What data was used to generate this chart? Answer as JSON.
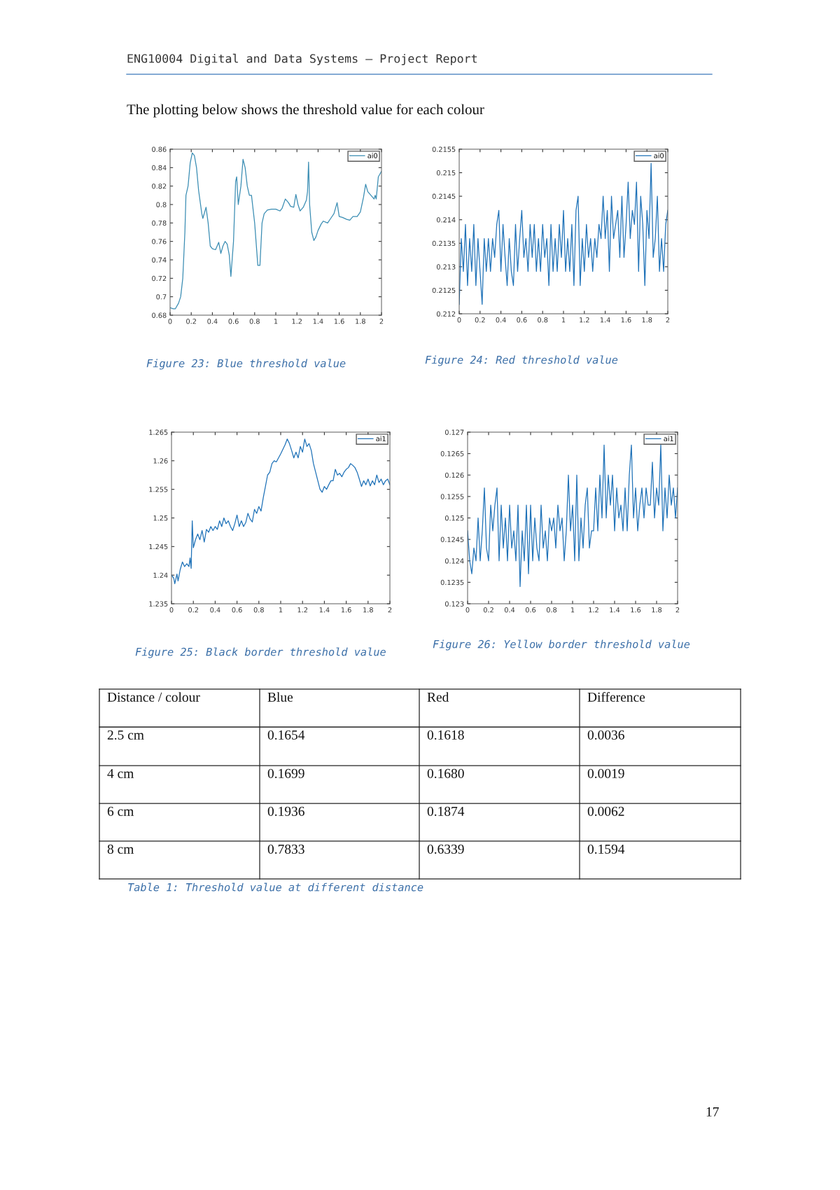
{
  "chart_data": [
    {
      "type": "line",
      "annotations": [
        "ENG10004 Digital and Data Systems – Project Report",
        "The plotting below shows the threshold value for each colour",
        "Figure 23: Blue threshold value"
      ],
      "xlim": [
        0,
        2
      ],
      "ylim": [
        0.68,
        0.86
      ],
      "xticks": [
        0,
        0.2,
        0.4,
        0.6,
        0.8,
        1,
        1.2,
        1.4,
        1.6,
        1.8,
        2
      ],
      "yticks": [
        0.68,
        0.7,
        0.72,
        0.74,
        0.76,
        0.78,
        0.8,
        0.82,
        0.84,
        0.86
      ],
      "legend": "top right",
      "grid": false,
      "series": [
        {
          "name": "ai0",
          "color": "#3a8db3",
          "x": [
            0,
            0.03,
            0.05,
            0.08,
            0.1,
            0.12,
            0.14,
            0.15,
            0.17,
            0.19,
            0.21,
            0.23,
            0.25,
            0.27,
            0.3,
            0.31,
            0.34,
            0.36,
            0.38,
            0.4,
            0.43,
            0.46,
            0.48,
            0.5,
            0.52,
            0.54,
            0.56,
            0.575,
            0.6,
            0.62,
            0.63,
            0.645,
            0.67,
            0.69,
            0.71,
            0.73,
            0.75,
            0.77,
            0.8,
            0.83,
            0.85,
            0.87,
            0.89,
            0.92,
            0.96,
            1.0,
            1.04,
            1.06,
            1.09,
            1.12,
            1.14,
            1.17,
            1.19,
            1.21,
            1.23,
            1.26,
            1.29,
            1.3,
            1.31,
            1.32,
            1.34,
            1.36,
            1.38,
            1.4,
            1.43,
            1.45,
            1.49,
            1.52,
            1.55,
            1.58,
            1.6,
            1.63,
            1.67,
            1.7,
            1.73,
            1.77,
            1.8,
            1.83,
            1.85,
            1.87,
            1.9,
            1.93,
            1.94,
            1.95,
            1.97,
            2.0
          ],
          "values": [
            0.688,
            0.687,
            0.687,
            0.693,
            0.7,
            0.72,
            0.77,
            0.81,
            0.82,
            0.845,
            0.856,
            0.853,
            0.84,
            0.815,
            0.79,
            0.785,
            0.797,
            0.78,
            0.755,
            0.752,
            0.751,
            0.759,
            0.747,
            0.755,
            0.76,
            0.757,
            0.745,
            0.722,
            0.76,
            0.825,
            0.83,
            0.8,
            0.82,
            0.849,
            0.84,
            0.82,
            0.81,
            0.81,
            0.78,
            0.734,
            0.734,
            0.78,
            0.79,
            0.794,
            0.795,
            0.795,
            0.793,
            0.796,
            0.806,
            0.802,
            0.798,
            0.797,
            0.811,
            0.8,
            0.793,
            0.797,
            0.805,
            0.814,
            0.846,
            0.8,
            0.77,
            0.761,
            0.765,
            0.772,
            0.779,
            0.782,
            0.78,
            0.785,
            0.79,
            0.802,
            0.787,
            0.786,
            0.784,
            0.783,
            0.787,
            0.787,
            0.792,
            0.808,
            0.822,
            0.814,
            0.81,
            0.806,
            0.81,
            0.806,
            0.83,
            0.836
          ]
        }
      ]
    },
    {
      "type": "line",
      "annotations": [
        "Figure 24: Red threshold value"
      ],
      "xlim": [
        0,
        2
      ],
      "ylim": [
        0.212,
        0.2155
      ],
      "xticks": [
        0,
        0.2,
        0.4,
        0.6,
        0.8,
        1,
        1.2,
        1.4,
        1.6,
        1.8,
        2
      ],
      "yticks": [
        0.212,
        0.2125,
        0.213,
        0.2135,
        0.214,
        0.2145,
        0.215,
        0.2155
      ],
      "legend": "top right",
      "grid": false,
      "series": [
        {
          "name": "ai0",
          "color": "#1f72b8",
          "x": [
            0,
            0.02,
            0.04,
            0.06,
            0.08,
            0.1,
            0.12,
            0.14,
            0.16,
            0.18,
            0.2,
            0.22,
            0.24,
            0.26,
            0.28,
            0.3,
            0.32,
            0.34,
            0.36,
            0.38,
            0.4,
            0.42,
            0.44,
            0.46,
            0.48,
            0.5,
            0.52,
            0.54,
            0.56,
            0.58,
            0.6,
            0.62,
            0.64,
            0.66,
            0.68,
            0.7,
            0.72,
            0.74,
            0.76,
            0.78,
            0.8,
            0.82,
            0.84,
            0.86,
            0.88,
            0.9,
            0.92,
            0.94,
            0.96,
            0.98,
            1.0,
            1.02,
            1.04,
            1.06,
            1.08,
            1.1,
            1.12,
            1.14,
            1.16,
            1.18,
            1.2,
            1.22,
            1.24,
            1.26,
            1.28,
            1.3,
            1.32,
            1.34,
            1.36,
            1.38,
            1.4,
            1.42,
            1.44,
            1.46,
            1.48,
            1.5,
            1.52,
            1.54,
            1.56,
            1.58,
            1.6,
            1.62,
            1.64,
            1.66,
            1.68,
            1.7,
            1.72,
            1.74,
            1.76,
            1.78,
            1.8,
            1.82,
            1.84,
            1.86,
            1.88,
            1.9,
            1.92,
            1.94,
            1.96,
            1.98,
            2.0
          ],
          "values": [
            0.2122,
            0.2136,
            0.2129,
            0.2139,
            0.2126,
            0.2136,
            0.2129,
            0.2139,
            0.2126,
            0.2136,
            0.2129,
            0.2122,
            0.2136,
            0.2129,
            0.2136,
            0.2129,
            0.2136,
            0.2132,
            0.2139,
            0.2142,
            0.2129,
            0.2139,
            0.2132,
            0.2126,
            0.2136,
            0.2129,
            0.2126,
            0.2139,
            0.2129,
            0.2136,
            0.2142,
            0.2132,
            0.2136,
            0.2129,
            0.2139,
            0.2132,
            0.2139,
            0.2129,
            0.2136,
            0.2129,
            0.2139,
            0.2132,
            0.2136,
            0.2126,
            0.2139,
            0.2129,
            0.2136,
            0.2129,
            0.2139,
            0.2132,
            0.2142,
            0.2129,
            0.2136,
            0.2129,
            0.2139,
            0.2126,
            0.2142,
            0.2145,
            0.2126,
            0.2136,
            0.2129,
            0.2139,
            0.2132,
            0.2136,
            0.2129,
            0.2136,
            0.2132,
            0.2139,
            0.2136,
            0.2145,
            0.2136,
            0.2142,
            0.2129,
            0.2145,
            0.2136,
            0.2139,
            0.2142,
            0.2132,
            0.2145,
            0.2132,
            0.2139,
            0.2148,
            0.2136,
            0.2142,
            0.2139,
            0.2148,
            0.2129,
            0.2145,
            0.2139,
            0.2126,
            0.2142,
            0.2136,
            0.2152,
            0.2132,
            0.2136,
            0.2145,
            0.2129,
            0.2136,
            0.2129,
            0.2139,
            0.2142
          ]
        }
      ]
    },
    {
      "type": "line",
      "annotations": [
        "Figure 25: Black border threshold value"
      ],
      "xlim": [
        0,
        2
      ],
      "ylim": [
        1.235,
        1.265
      ],
      "xticks": [
        0,
        0.2,
        0.4,
        0.6,
        0.8,
        1,
        1.2,
        1.4,
        1.6,
        1.8,
        2
      ],
      "yticks": [
        1.235,
        1.24,
        1.245,
        1.25,
        1.255,
        1.26,
        1.265
      ],
      "legend": "top right",
      "grid": false,
      "series": [
        {
          "name": "ai1",
          "color": "#1f72b8",
          "x": [
            0,
            0.02,
            0.03,
            0.05,
            0.06,
            0.08,
            0.1,
            0.12,
            0.14,
            0.16,
            0.17,
            0.18,
            0.19,
            0.2,
            0.22,
            0.24,
            0.26,
            0.28,
            0.3,
            0.32,
            0.34,
            0.36,
            0.38,
            0.4,
            0.42,
            0.44,
            0.46,
            0.48,
            0.5,
            0.52,
            0.54,
            0.56,
            0.58,
            0.6,
            0.62,
            0.64,
            0.66,
            0.68,
            0.7,
            0.72,
            0.74,
            0.76,
            0.78,
            0.8,
            0.82,
            0.84,
            0.86,
            0.88,
            0.9,
            0.92,
            0.94,
            0.96,
            0.98,
            1.0,
            1.02,
            1.04,
            1.06,
            1.08,
            1.1,
            1.12,
            1.14,
            1.16,
            1.18,
            1.2,
            1.22,
            1.24,
            1.26,
            1.28,
            1.3,
            1.32,
            1.34,
            1.36,
            1.38,
            1.4,
            1.42,
            1.44,
            1.46,
            1.48,
            1.5,
            1.52,
            1.54,
            1.56,
            1.58,
            1.6,
            1.62,
            1.64,
            1.66,
            1.68,
            1.7,
            1.72,
            1.74,
            1.76,
            1.78,
            1.8,
            1.82,
            1.84,
            1.86,
            1.88,
            1.9,
            1.92,
            1.94,
            1.96,
            1.98,
            2.0
          ],
          "values": [
            1.24,
            1.2395,
            1.2385,
            1.2402,
            1.239,
            1.241,
            1.2423,
            1.2415,
            1.242,
            1.2415,
            1.243,
            1.2412,
            1.2495,
            1.2448,
            1.2462,
            1.2472,
            1.2462,
            1.2478,
            1.2458,
            1.248,
            1.2475,
            1.2485,
            1.2478,
            1.2485,
            1.248,
            1.2495,
            1.2485,
            1.25,
            1.249,
            1.2495,
            1.2485,
            1.2478,
            1.249,
            1.2505,
            1.2485,
            1.2495,
            1.2485,
            1.2492,
            1.2508,
            1.2498,
            1.2493,
            1.2515,
            1.2508,
            1.252,
            1.2512,
            1.2535,
            1.2555,
            1.2575,
            1.258,
            1.2595,
            1.26,
            1.2598,
            1.2605,
            1.2612,
            1.262,
            1.2628,
            1.2638,
            1.263,
            1.2618,
            1.2605,
            1.2615,
            1.2605,
            1.2625,
            1.2615,
            1.2638,
            1.2625,
            1.263,
            1.2618,
            1.2595,
            1.258,
            1.2565,
            1.255,
            1.2545,
            1.2555,
            1.255,
            1.2558,
            1.2565,
            1.2565,
            1.2585,
            1.2575,
            1.2578,
            1.2572,
            1.258,
            1.2585,
            1.2588,
            1.2595,
            1.2592,
            1.2588,
            1.258,
            1.2568,
            1.2555,
            1.2565,
            1.2558,
            1.2568,
            1.2556,
            1.2565,
            1.2558,
            1.2575,
            1.2562,
            1.2568,
            1.2558,
            1.2565,
            1.2568,
            1.2558
          ]
        }
      ]
    },
    {
      "type": "line",
      "annotations": [
        "Figure 26: Yellow border threshold value",
        "Distance / colour",
        "Blue",
        "Red",
        "Difference",
        "2.5 cm",
        "0.1654",
        "0.1618",
        "0.0036",
        "4 cm",
        "0.1699",
        "0.1680",
        "0.0019",
        "6 cm",
        "0.1936",
        "0.1874",
        "0.0062",
        "8 cm",
        "0.7833",
        "0.6339",
        "0.1594",
        "Table 1: Threshold value at different distance",
        "17"
      ],
      "xlim": [
        0,
        2
      ],
      "ylim": [
        0.123,
        0.127
      ],
      "xticks": [
        0,
        0.2,
        0.4,
        0.6,
        0.8,
        1,
        1.2,
        1.4,
        1.6,
        1.8,
        2
      ],
      "yticks": [
        0.123,
        0.1235,
        0.124,
        0.1245,
        0.125,
        0.1255,
        0.126,
        0.1265,
        0.127
      ],
      "legend": "top right",
      "grid": false,
      "series": [
        {
          "name": "ai1",
          "color": "#1f72b8",
          "x": [
            0,
            0.02,
            0.04,
            0.06,
            0.08,
            0.1,
            0.12,
            0.14,
            0.16,
            0.18,
            0.2,
            0.22,
            0.24,
            0.26,
            0.28,
            0.3,
            0.32,
            0.34,
            0.36,
            0.38,
            0.4,
            0.42,
            0.44,
            0.46,
            0.48,
            0.5,
            0.52,
            0.54,
            0.56,
            0.58,
            0.6,
            0.62,
            0.64,
            0.66,
            0.68,
            0.7,
            0.72,
            0.74,
            0.76,
            0.78,
            0.8,
            0.82,
            0.84,
            0.86,
            0.88,
            0.9,
            0.92,
            0.94,
            0.96,
            0.98,
            1.0,
            1.02,
            1.04,
            1.06,
            1.08,
            1.1,
            1.12,
            1.14,
            1.16,
            1.18,
            1.2,
            1.22,
            1.24,
            1.26,
            1.28,
            1.3,
            1.32,
            1.34,
            1.36,
            1.38,
            1.4,
            1.42,
            1.44,
            1.46,
            1.48,
            1.5,
            1.52,
            1.54,
            1.56,
            1.58,
            1.6,
            1.62,
            1.64,
            1.66,
            1.68,
            1.7,
            1.72,
            1.74,
            1.76,
            1.78,
            1.8,
            1.82,
            1.84,
            1.86,
            1.88,
            1.9,
            1.92,
            1.94,
            1.96,
            1.98,
            2.0
          ],
          "values": [
            0.1247,
            0.124,
            0.1237,
            0.1243,
            0.124,
            0.125,
            0.124,
            0.1247,
            0.1257,
            0.1243,
            0.124,
            0.1253,
            0.1247,
            0.1253,
            0.1257,
            0.124,
            0.1253,
            0.1243,
            0.125,
            0.124,
            0.1253,
            0.1243,
            0.1247,
            0.124,
            0.1253,
            0.1234,
            0.1247,
            0.124,
            0.1253,
            0.1237,
            0.1253,
            0.124,
            0.125,
            0.1243,
            0.124,
            0.1253,
            0.1243,
            0.1247,
            0.124,
            0.125,
            0.1247,
            0.125,
            0.1243,
            0.1253,
            0.1247,
            0.125,
            0.124,
            0.1247,
            0.126,
            0.1247,
            0.1253,
            0.124,
            0.126,
            0.124,
            0.125,
            0.1243,
            0.1253,
            0.1257,
            0.1243,
            0.1247,
            0.1247,
            0.1257,
            0.1247,
            0.126,
            0.125,
            0.1267,
            0.125,
            0.126,
            0.1253,
            0.126,
            0.1247,
            0.1257,
            0.125,
            0.1253,
            0.1247,
            0.1257,
            0.1247,
            0.126,
            0.1267,
            0.125,
            0.1257,
            0.1247,
            0.1253,
            0.1257,
            0.125,
            0.1257,
            0.1253,
            0.1253,
            0.1263,
            0.125,
            0.1257,
            0.1253,
            0.1267,
            0.1247,
            0.1257,
            0.125,
            0.126,
            0.1253,
            0.1257,
            0.125,
            0.1257
          ]
        }
      ]
    }
  ]
}
